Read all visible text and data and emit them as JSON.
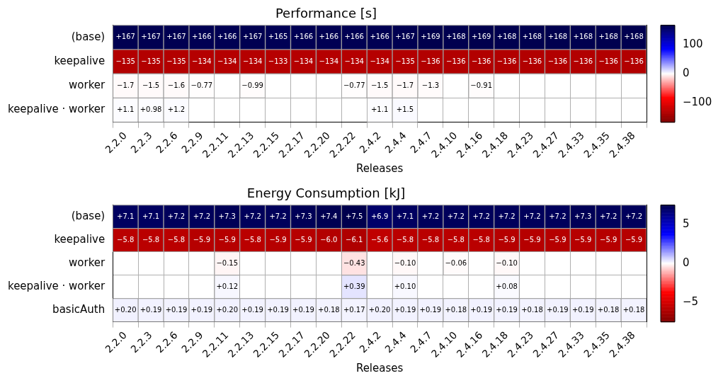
{
  "chart_data": [
    {
      "type": "heatmap",
      "title": "Performance [s]",
      "xlabel": "Releases",
      "grid": true,
      "categories": [
        "2.2.0",
        "2.2.3",
        "2.2.6",
        "2.2.9",
        "2.2.11",
        "2.2.13",
        "2.2.15",
        "2.2.17",
        "2.2.20",
        "2.2.22",
        "2.4.2",
        "2.4.4",
        "2.4.7",
        "2.4.10",
        "2.4.16",
        "2.4.18",
        "2.4.23",
        "2.4.27",
        "2.4.33",
        "2.4.35",
        "2.4.38"
      ],
      "y_categories": [
        "(base)",
        "keepalive",
        "worker",
        "keepalive · worker"
      ],
      "cells": [
        [
          167,
          167,
          167,
          166,
          166,
          167,
          165,
          166,
          166,
          166,
          166,
          167,
          169,
          168,
          169,
          168,
          168,
          168,
          168,
          168,
          168
        ],
        [
          -135,
          -135,
          -135,
          -134,
          -134,
          -134,
          -133,
          -134,
          -134,
          -134,
          -134,
          -135,
          -136,
          -136,
          -136,
          -136,
          -136,
          -136,
          -136,
          -136,
          -136
        ],
        [
          -1.7,
          -1.5,
          -1.6,
          -0.77,
          null,
          -0.99,
          null,
          null,
          null,
          -0.77,
          -1.5,
          -1.7,
          -1.3,
          null,
          -0.91,
          null,
          null,
          null,
          null,
          null,
          null
        ],
        [
          1.1,
          0.98,
          1.2,
          null,
          null,
          null,
          null,
          null,
          null,
          null,
          1.1,
          1.5,
          null,
          null,
          null,
          null,
          null,
          null,
          null,
          null,
          null
        ]
      ],
      "cell_labels": [
        [
          "+167",
          "+167",
          "+167",
          "+166",
          "+166",
          "+167",
          "+165",
          "+166",
          "+166",
          "+166",
          "+166",
          "+167",
          "+169",
          "+168",
          "+169",
          "+168",
          "+168",
          "+168",
          "+168",
          "+168",
          "+168"
        ],
        [
          "−135",
          "−135",
          "−135",
          "−134",
          "−134",
          "−134",
          "−133",
          "−134",
          "−134",
          "−134",
          "−134",
          "−135",
          "−136",
          "−136",
          "−136",
          "−136",
          "−136",
          "−136",
          "−136",
          "−136",
          "−136"
        ],
        [
          "−1.7",
          "−1.5",
          "−1.6",
          "−0.77",
          null,
          "−0.99",
          null,
          null,
          null,
          "−0.77",
          "−1.5",
          "−1.7",
          "−1.3",
          null,
          "−0.91",
          null,
          null,
          null,
          null,
          null,
          null
        ],
        [
          "+1.1",
          "+0.98",
          "+1.2",
          null,
          null,
          null,
          null,
          null,
          null,
          null,
          "+1.1",
          "+1.5",
          null,
          null,
          null,
          null,
          null,
          null,
          null,
          null,
          null
        ]
      ],
      "clim": [
        -169,
        169
      ],
      "cticks": [
        {
          "value": -100,
          "label": "−100"
        },
        0,
        100
      ]
    },
    {
      "type": "heatmap",
      "title": "Energy Consumption [kJ]",
      "xlabel": "Releases",
      "grid": true,
      "categories": [
        "2.2.0",
        "2.2.3",
        "2.2.6",
        "2.2.9",
        "2.2.11",
        "2.2.13",
        "2.2.15",
        "2.2.17",
        "2.2.20",
        "2.2.22",
        "2.4.2",
        "2.4.4",
        "2.4.7",
        "2.4.10",
        "2.4.16",
        "2.4.18",
        "2.4.23",
        "2.4.27",
        "2.4.33",
        "2.4.35",
        "2.4.38"
      ],
      "y_categories": [
        "(base)",
        "keepalive",
        "worker",
        "keepalive · worker",
        "basicAuth"
      ],
      "cells": [
        [
          7.1,
          7.1,
          7.2,
          7.2,
          7.3,
          7.2,
          7.2,
          7.3,
          7.4,
          7.5,
          6.9,
          7.1,
          7.2,
          7.2,
          7.2,
          7.2,
          7.2,
          7.2,
          7.3,
          7.2,
          7.2
        ],
        [
          -5.8,
          -5.8,
          -5.8,
          -5.9,
          -5.9,
          -5.8,
          -5.9,
          -5.9,
          -6.0,
          -6.1,
          -5.6,
          -5.8,
          -5.8,
          -5.8,
          -5.8,
          -5.9,
          -5.9,
          -5.9,
          -5.9,
          -5.9,
          -5.9
        ],
        [
          null,
          null,
          null,
          null,
          -0.15,
          null,
          null,
          null,
          null,
          -0.43,
          null,
          -0.1,
          null,
          -0.06,
          null,
          -0.1,
          null,
          null,
          null,
          null,
          null
        ],
        [
          null,
          null,
          null,
          null,
          0.12,
          null,
          null,
          null,
          null,
          0.39,
          null,
          0.1,
          null,
          null,
          null,
          0.08,
          null,
          null,
          null,
          null,
          null
        ],
        [
          0.2,
          0.19,
          0.19,
          0.19,
          0.2,
          0.19,
          0.19,
          0.19,
          0.18,
          0.17,
          0.2,
          0.19,
          0.19,
          0.18,
          0.19,
          0.19,
          0.18,
          0.19,
          0.19,
          0.18,
          0.18
        ]
      ],
      "cell_labels": [
        [
          "+7.1",
          "+7.1",
          "+7.2",
          "+7.2",
          "+7.3",
          "+7.2",
          "+7.2",
          "+7.3",
          "+7.4",
          "+7.5",
          "+6.9",
          "+7.1",
          "+7.2",
          "+7.2",
          "+7.2",
          "+7.2",
          "+7.2",
          "+7.2",
          "+7.3",
          "+7.2",
          "+7.2"
        ],
        [
          "−5.8",
          "−5.8",
          "−5.8",
          "−5.9",
          "−5.9",
          "−5.8",
          "−5.9",
          "−5.9",
          "−6.0",
          "−6.1",
          "−5.6",
          "−5.8",
          "−5.8",
          "−5.8",
          "−5.8",
          "−5.9",
          "−5.9",
          "−5.9",
          "−5.9",
          "−5.9",
          "−5.9"
        ],
        [
          null,
          null,
          null,
          null,
          "−0.15",
          null,
          null,
          null,
          null,
          "−0.43",
          null,
          "−0.10",
          null,
          "−0.06",
          null,
          "−0.10",
          null,
          null,
          null,
          null,
          null
        ],
        [
          null,
          null,
          null,
          null,
          "+0.12",
          null,
          null,
          null,
          null,
          "+0.39",
          null,
          "+0.10",
          null,
          null,
          null,
          "+0.08",
          null,
          null,
          null,
          null,
          null
        ],
        [
          "+0.20",
          "+0.19",
          "+0.19",
          "+0.19",
          "+0.20",
          "+0.19",
          "+0.19",
          "+0.19",
          "+0.18",
          "+0.17",
          "+0.20",
          "+0.19",
          "+0.19",
          "+0.18",
          "+0.19",
          "+0.19",
          "+0.18",
          "+0.19",
          "+0.19",
          "+0.18",
          "+0.18"
        ]
      ],
      "clim": [
        -7.5,
        7.5
      ],
      "cticks": [
        {
          "value": -5,
          "label": "−5"
        },
        0,
        5
      ]
    }
  ]
}
